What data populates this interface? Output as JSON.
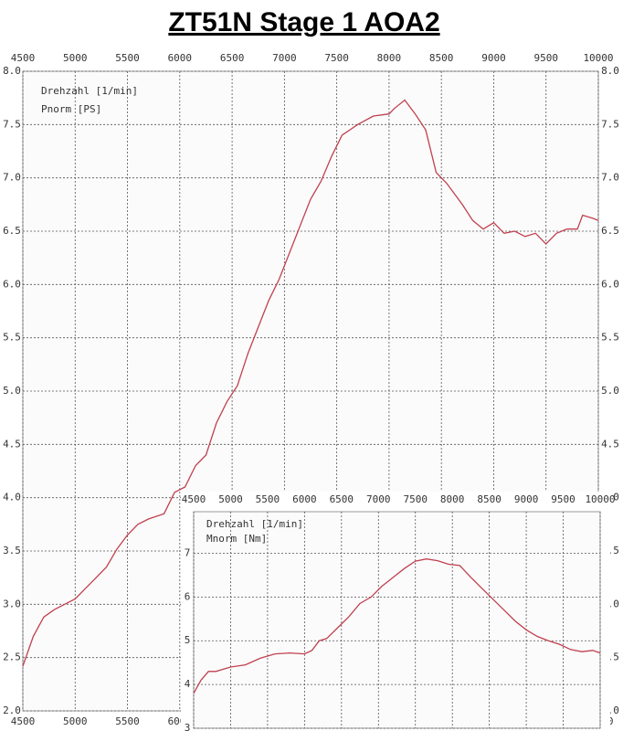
{
  "chart_data": [
    {
      "type": "line",
      "title": "ZT51N  Stage 1  AOA2",
      "x_label": "Drehzahl [1/min]",
      "y_label": "Pnorm [PS]",
      "x": [
        4500,
        4600,
        4700,
        4800,
        4900,
        5000,
        5100,
        5200,
        5300,
        5400,
        5500,
        5600,
        5700,
        5850,
        5950,
        6050,
        6150,
        6250,
        6350,
        6450,
        6550,
        6650,
        6750,
        6850,
        6950,
        7050,
        7150,
        7250,
        7350,
        7450,
        7550,
        7700,
        7850,
        8000,
        8050,
        8150,
        8250,
        8350,
        8450,
        8550,
        8700,
        8800,
        8900,
        9000,
        9100,
        9200,
        9300,
        9400,
        9500,
        9600,
        9700,
        9800,
        9850,
        9950,
        10000
      ],
      "values": [
        2.42,
        2.7,
        2.88,
        2.95,
        3.0,
        3.05,
        3.15,
        3.25,
        3.35,
        3.52,
        3.65,
        3.75,
        3.8,
        3.85,
        4.05,
        4.1,
        4.3,
        4.4,
        4.7,
        4.9,
        5.05,
        5.35,
        5.6,
        5.85,
        6.05,
        6.3,
        6.55,
        6.8,
        6.97,
        7.2,
        7.4,
        7.5,
        7.58,
        7.6,
        7.65,
        7.73,
        7.6,
        7.45,
        7.05,
        6.95,
        6.75,
        6.6,
        6.52,
        6.58,
        6.48,
        6.5,
        6.45,
        6.48,
        6.38,
        6.48,
        6.52,
        6.52,
        6.65,
        6.62,
        6.6
      ],
      "color": "#c0404f",
      "xlim": [
        4500,
        10000
      ],
      "xticks": [
        4500,
        5000,
        5500,
        6000,
        6500,
        7000,
        7500,
        8000,
        8500,
        9000,
        9500,
        10000
      ],
      "ylim": [
        2,
        8
      ],
      "yticks": [
        {
          "value": 2,
          "label": "2.0"
        },
        2.5,
        {
          "value": 3,
          "label": "3.0"
        },
        3.5,
        {
          "value": 4,
          "label": "4.0"
        },
        4.5,
        {
          "value": 5,
          "label": "5.0"
        },
        5.5,
        {
          "value": 6,
          "label": "6.0"
        },
        6.5,
        {
          "value": 7,
          "label": "7.0"
        },
        7.5,
        {
          "value": 8,
          "label": "8.0"
        }
      ],
      "grid": true
    },
    {
      "type": "line",
      "x_label": "Drehzahl [1/min]",
      "y_label": "Mnorm [Nm]",
      "x": [
        4500,
        4600,
        4700,
        4800,
        4900,
        5000,
        5200,
        5400,
        5600,
        5800,
        6000,
        6100,
        6200,
        6300,
        6450,
        6600,
        6750,
        6900,
        7050,
        7200,
        7350,
        7500,
        7650,
        7800,
        7950,
        8100,
        8250,
        8400,
        8550,
        8700,
        8850,
        9000,
        9150,
        9300,
        9450,
        9600,
        9750,
        9900,
        10000
      ],
      "values": [
        3.8,
        4.1,
        4.3,
        4.3,
        4.35,
        4.4,
        4.45,
        4.6,
        4.7,
        4.72,
        4.7,
        4.78,
        5.0,
        5.05,
        5.3,
        5.55,
        5.85,
        6.0,
        6.25,
        6.45,
        6.65,
        6.82,
        6.87,
        6.83,
        6.75,
        6.72,
        6.45,
        6.2,
        5.95,
        5.7,
        5.45,
        5.25,
        5.1,
        5.0,
        4.92,
        4.8,
        4.75,
        4.78,
        4.72
      ],
      "color": "#c0404f",
      "xlim": [
        4500,
        10000
      ],
      "xticks": [
        4500,
        5000,
        5500,
        6000,
        6500,
        7000,
        7500,
        8000,
        8500,
        9000,
        9500,
        10000
      ],
      "ylim": [
        3,
        7.95
      ],
      "yticks": [
        3,
        4,
        5,
        6,
        7
      ],
      "grid": true
    }
  ]
}
